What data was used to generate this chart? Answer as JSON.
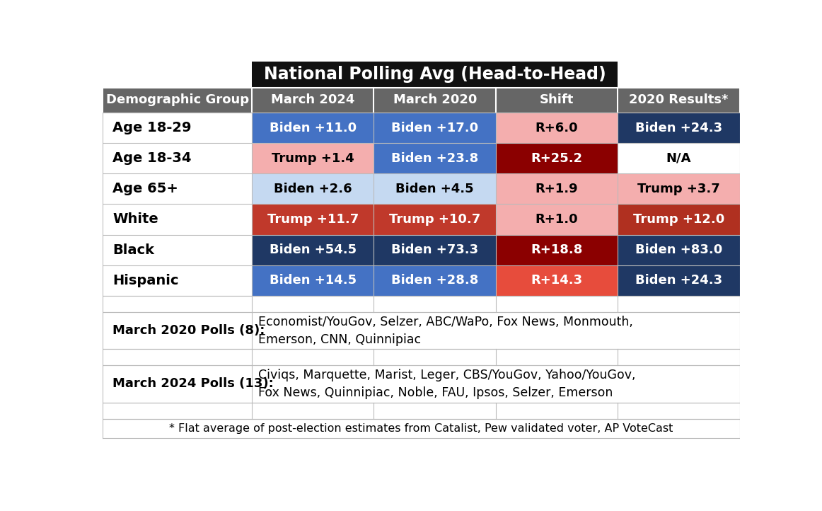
{
  "title": "National Polling Avg (Head-to-Head)",
  "col_headers": [
    "March 2024",
    "March 2020",
    "Shift",
    "2020 Results*"
  ],
  "row_labels": [
    "Demographic Group",
    "Age 18-29",
    "Age 18-34",
    "Age 65+",
    "White",
    "Black",
    "Hispanic"
  ],
  "table_data": [
    [
      "Biden +11.0",
      "Biden +17.0",
      "R+6.0",
      "Biden +24.3"
    ],
    [
      "Trump +1.4",
      "Biden +23.8",
      "R+25.2",
      "N/A"
    ],
    [
      "Biden +2.6",
      "Biden +4.5",
      "R+1.9",
      "Trump +3.7"
    ],
    [
      "Trump +11.7",
      "Trump +10.7",
      "R+1.0",
      "Trump +12.0"
    ],
    [
      "Biden +54.5",
      "Biden +73.3",
      "R+18.8",
      "Biden +83.0"
    ],
    [
      "Biden +14.5",
      "Biden +28.8",
      "R+14.3",
      "Biden +24.3"
    ]
  ],
  "cell_colors": [
    [
      "#4472C4",
      "#4472C4",
      "#F4AEAE",
      "#1F3864"
    ],
    [
      "#F4AEAE",
      "#4472C4",
      "#8B0000",
      "#FFFFFF"
    ],
    [
      "#C5D9F1",
      "#C5D9F1",
      "#F4AEAE",
      "#F4AEAE"
    ],
    [
      "#C0392B",
      "#C0392B",
      "#F4AEAE",
      "#B03020"
    ],
    [
      "#1F3864",
      "#1F3864",
      "#8B0000",
      "#1F3864"
    ],
    [
      "#4472C4",
      "#4472C4",
      "#E74C3C",
      "#1F3864"
    ]
  ],
  "text_colors": [
    [
      "#FFFFFF",
      "#FFFFFF",
      "#000000",
      "#FFFFFF"
    ],
    [
      "#000000",
      "#FFFFFF",
      "#FFFFFF",
      "#000000"
    ],
    [
      "#000000",
      "#000000",
      "#000000",
      "#000000"
    ],
    [
      "#FFFFFF",
      "#FFFFFF",
      "#000000",
      "#FFFFFF"
    ],
    [
      "#FFFFFF",
      "#FFFFFF",
      "#FFFFFF",
      "#FFFFFF"
    ],
    [
      "#FFFFFF",
      "#FFFFFF",
      "#FFFFFF",
      "#FFFFFF"
    ]
  ],
  "footnote_rows": [
    {
      "label": "March 2020 Polls (8):",
      "text": "Economist/YouGov, Selzer, ABC/WaPo, Fox News, Monmouth,\nEmerson, CNN, Quinnipiac"
    },
    {
      "label": "March 2024 Polls (13):",
      "text": "Civiqs, Marquette, Marist, Leger, CBS/YouGov, Yahoo/YouGov,\nFox News, Quinnipiac, Noble, FAU, Ipsos, Selzer, Emerson"
    }
  ],
  "footnote_bottom": "* Flat average of post-election estimates from Catalist, Pew validated voter, AP VoteCast",
  "title_bg": "#111111",
  "header_bg": "#666666",
  "grid_color": "#BBBBBB"
}
